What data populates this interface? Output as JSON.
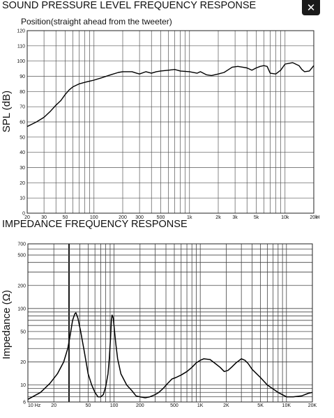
{
  "close_button": {
    "label": "✕",
    "icon": "close-icon"
  },
  "chart_data": [
    {
      "type": "line",
      "title": "SOUND PRESSURE LEVEL FREQUENCY RESPONSE",
      "subtitle": "Position(straight ahead from the tweeter)",
      "xlabel": "",
      "ylabel": "SPL  (dB)",
      "xscale": "log",
      "xlim": [
        20,
        20000
      ],
      "ylim": [
        0,
        120
      ],
      "x_unit": "H",
      "grid": true,
      "x_ticks": [
        20,
        30,
        50,
        100,
        200,
        300,
        500,
        1000,
        2000,
        3000,
        5000,
        10000,
        20000
      ],
      "x_tick_labels": [
        "20",
        "30",
        "50",
        "100",
        "200",
        "300",
        "500",
        "1k",
        "2k",
        "3k",
        "5k",
        "10k",
        "20k"
      ],
      "y_ticks": [
        0,
        10,
        20,
        30,
        40,
        50,
        60,
        70,
        80,
        90,
        100,
        110,
        120
      ],
      "y_tick_labels": [
        "0",
        "10",
        "20",
        "30",
        "40",
        "50",
        "60",
        "70",
        "80",
        "90",
        "100",
        "110",
        "120"
      ],
      "series": [
        {
          "x": [
            20,
            25,
            30,
            35,
            40,
            45,
            50,
            55,
            60,
            70,
            80,
            100,
            120,
            150,
            180,
            200,
            250,
            280,
            300,
            350,
            400,
            450,
            500,
            600,
            700,
            800,
            1000,
            1200,
            1300,
            1500,
            1700,
            2000,
            2300,
            2500,
            2800,
            3200,
            3600,
            4000,
            4500,
            5000,
            5500,
            6000,
            6500,
            7000,
            8000,
            9000,
            10000,
            11000,
            12000,
            14000,
            15000,
            16000,
            18000,
            20000
          ],
          "y": [
            57,
            60,
            63,
            67,
            71,
            74,
            78,
            81,
            83,
            85,
            86,
            87.5,
            89,
            91,
            92.5,
            93,
            93,
            92,
            91.5,
            93,
            92,
            93,
            93.5,
            94,
            94.5,
            93.5,
            93,
            92,
            93,
            91,
            90.5,
            91.5,
            92.5,
            94,
            96,
            96.5,
            96,
            95.5,
            94,
            95.5,
            96.5,
            97,
            96.5,
            92,
            91.5,
            94,
            98,
            98.5,
            99,
            97,
            94.5,
            93,
            93.5,
            97
          ]
        }
      ]
    },
    {
      "type": "line",
      "title": "IMPEDANCE FREQUENCY RESPONSE",
      "xlabel": "",
      "ylabel": "Impedance  (Ω)",
      "xscale": "log",
      "yscale": "log",
      "xlim": [
        10,
        20000
      ],
      "ylim": [
        6,
        700
      ],
      "grid": true,
      "x_ticks": [
        10,
        20,
        50,
        100,
        200,
        500,
        1000,
        2000,
        5000,
        10000,
        20000
      ],
      "x_tick_labels": [
        "10 Hz",
        "20",
        "50",
        "100",
        "200",
        "500",
        "1K",
        "2K",
        "5K",
        "10K",
        "20K"
      ],
      "y_ticks": [
        6,
        10,
        20,
        50,
        100,
        200,
        500,
        700
      ],
      "y_tick_labels": [
        "6",
        "10",
        "20",
        "50",
        "100",
        "200",
        "500",
        "700"
      ],
      "series": [
        {
          "x": [
            10,
            14,
            18,
            22,
            26,
            29,
            31,
            33,
            35,
            36,
            38,
            41,
            45,
            50,
            55,
            60,
            65,
            70,
            75,
            80,
            85,
            88,
            91,
            93,
            95,
            98,
            101,
            105,
            110,
            120,
            140,
            160,
            180,
            200,
            230,
            260,
            300,
            330,
            370,
            420,
            470,
            520,
            600,
            700,
            800,
            900,
            1000,
            1100,
            1300,
            1500,
            1700,
            1900,
            2100,
            2300,
            2600,
            3000,
            3300,
            3600,
            4000,
            5000,
            6000,
            8000,
            10000,
            12000,
            15000,
            18000,
            20000
          ],
          "y": [
            6.5,
            8,
            10.5,
            14,
            20,
            30,
            45,
            70,
            85,
            88,
            75,
            50,
            28,
            14,
            10,
            8,
            7,
            7,
            7.5,
            9.5,
            14,
            22,
            40,
            70,
            82,
            75,
            52,
            34,
            22,
            14,
            10,
            8.5,
            7.2,
            7,
            6.8,
            7,
            7.5,
            8,
            9,
            10.5,
            12,
            12.5,
            13.5,
            15,
            17,
            19.5,
            21,
            22,
            21.5,
            19,
            17,
            15,
            15.5,
            17,
            19.5,
            22,
            21,
            19,
            16,
            12.5,
            10,
            8,
            7,
            7,
            7.2,
            7.8,
            8
          ]
        }
      ]
    }
  ]
}
